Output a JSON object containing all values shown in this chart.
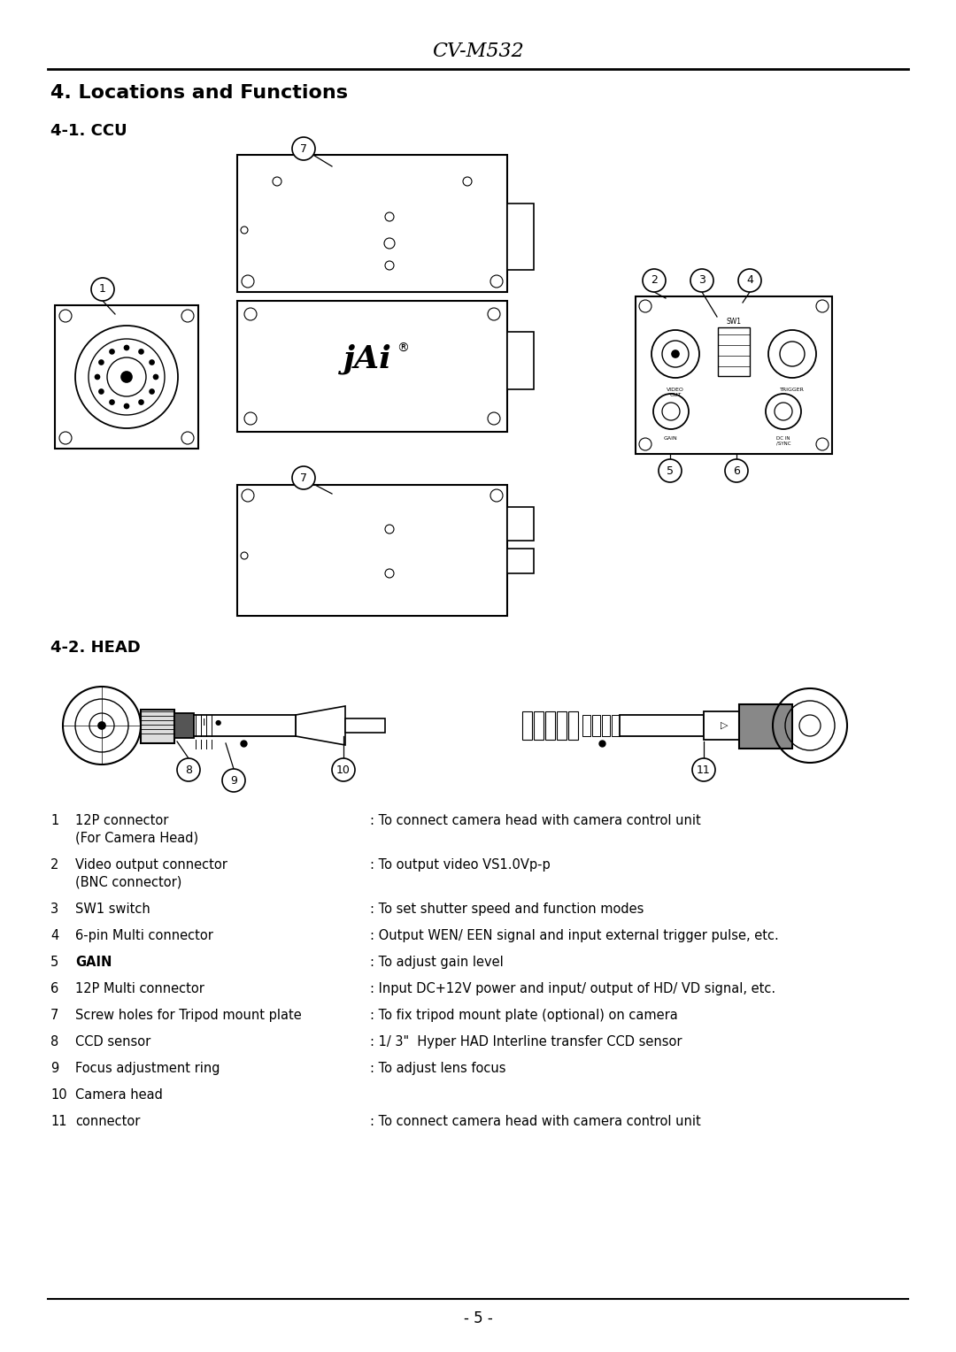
{
  "title": "CV-M532",
  "section_title": "4. Locations and Functions",
  "sub_section_ccu": "4-1. CCU",
  "sub_section_head": "4-2. HEAD",
  "page_number": "- 5 -",
  "bg_color": "#ffffff",
  "items": [
    {
      "num": "1",
      "name": "12P connector",
      "name2": "(For Camera Head)",
      "desc": ": To connect camera head with camera control unit"
    },
    {
      "num": "2",
      "name": "Video output connector",
      "name2": "(BNC connector)",
      "desc": ": To output video VS1.0Vp-p"
    },
    {
      "num": "3",
      "name": "SW1 switch",
      "name2": "",
      "desc": ": To set shutter speed and function modes"
    },
    {
      "num": "4",
      "name": "6-pin Multi connector",
      "name2": "",
      "desc": ": Output WEN/ EEN signal and input external trigger pulse, etc."
    },
    {
      "num": "5",
      "name": "GAIN",
      "name2": "",
      "desc": ": To adjust gain level"
    },
    {
      "num": "6",
      "name": "12P Multi connector",
      "name2": "",
      "desc": ": Input DC+12V power and input/ output of HD/ VD signal, etc."
    },
    {
      "num": "7",
      "name": "Screw holes for Tripod mount plate",
      "name2": "",
      "desc": ": To fix tripod mount plate (optional) on camera"
    },
    {
      "num": "8",
      "name": "CCD sensor",
      "name2": "",
      "desc": ": 1/ 3\"  Hyper HAD Interline transfer CCD sensor"
    },
    {
      "num": "9",
      "name": "Focus adjustment ring",
      "name2": "",
      "desc": ": To adjust lens focus"
    },
    {
      "num": "10",
      "name": "Camera head",
      "name2": "",
      "desc": ""
    },
    {
      "num": "11",
      "name": "connector",
      "name2": "",
      "desc": ": To connect camera head with camera control unit"
    }
  ]
}
